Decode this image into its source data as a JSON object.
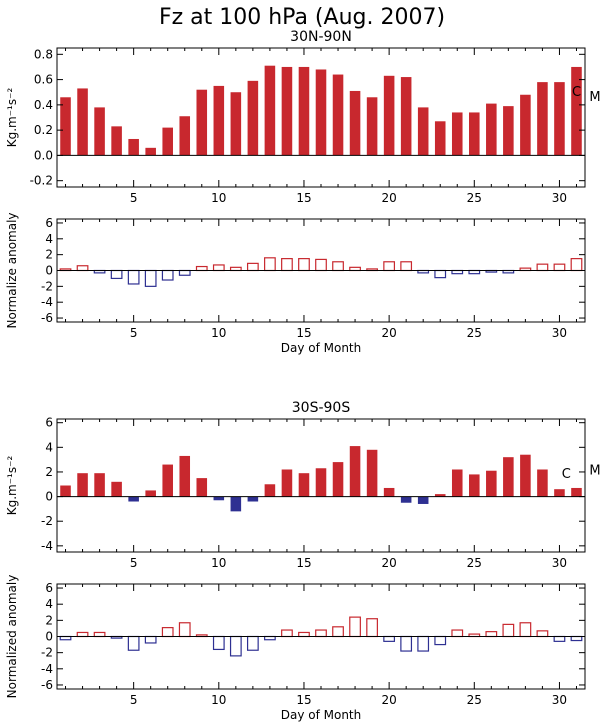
{
  "figure": {
    "title": "Fz at 100 hPa (Aug. 2007)"
  },
  "colors": {
    "positive": "#C8282E",
    "negative": "#2E3092",
    "axis": "#000000"
  },
  "chart_data": [
    {
      "id": "nh-fz",
      "type": "bar",
      "title": "30N-90N",
      "xlabel": "",
      "ylabel": "Kg.m⁻¹s⁻²",
      "x": [
        1,
        2,
        3,
        4,
        5,
        6,
        7,
        8,
        9,
        10,
        11,
        12,
        13,
        14,
        15,
        16,
        17,
        18,
        19,
        20,
        21,
        22,
        23,
        24,
        25,
        26,
        27,
        28,
        29,
        30,
        31
      ],
      "values": [
        0.46,
        0.53,
        0.38,
        0.23,
        0.13,
        0.06,
        0.22,
        0.31,
        0.52,
        0.55,
        0.5,
        0.59,
        0.71,
        0.7,
        0.7,
        0.68,
        0.64,
        0.51,
        0.46,
        0.63,
        0.62,
        0.38,
        0.27,
        0.34,
        0.34,
        0.41,
        0.39,
        0.48,
        0.58,
        0.58,
        0.7
      ],
      "ylim": [
        -0.25,
        0.85
      ],
      "yticks": [
        -0.2,
        0.0,
        0.2,
        0.4,
        0.6,
        0.8
      ],
      "xlim": [
        0.5,
        31.5
      ],
      "xticks": [
        5,
        10,
        15,
        20,
        25,
        30
      ],
      "style": "filled",
      "marker_labels": [
        {
          "text": "C",
          "x": 31,
          "y": 0.47
        },
        {
          "text": "M",
          "x": 32.2,
          "y": 0.43
        }
      ],
      "grid": false
    },
    {
      "id": "nh-anomaly",
      "type": "bar",
      "title": "",
      "xlabel": "Day of Month",
      "ylabel": "Normalize anomaly",
      "x": [
        1,
        2,
        3,
        4,
        5,
        6,
        7,
        8,
        9,
        10,
        11,
        12,
        13,
        14,
        15,
        16,
        17,
        18,
        19,
        20,
        21,
        22,
        23,
        24,
        25,
        26,
        27,
        28,
        29,
        30,
        31
      ],
      "values": [
        0.2,
        0.6,
        -0.3,
        -1.0,
        -1.7,
        -2.0,
        -1.2,
        -0.6,
        0.5,
        0.7,
        0.4,
        0.9,
        1.6,
        1.5,
        1.5,
        1.4,
        1.1,
        0.4,
        0.2,
        1.1,
        1.1,
        -0.3,
        -0.9,
        -0.4,
        -0.4,
        -0.2,
        -0.3,
        0.3,
        0.8,
        0.8,
        1.5
      ],
      "ylim": [
        -6.5,
        6.5
      ],
      "yticks": [
        -6,
        -4,
        -2,
        0,
        2,
        4,
        6
      ],
      "xlim": [
        0.5,
        31.5
      ],
      "xticks": [
        5,
        10,
        15,
        20,
        25,
        30
      ],
      "style": "outline",
      "grid": false
    },
    {
      "id": "sh-fz",
      "type": "bar",
      "title": "30S-90S",
      "xlabel": "",
      "ylabel": "Kg.m⁻¹s⁻²",
      "x": [
        1,
        2,
        3,
        4,
        5,
        6,
        7,
        8,
        9,
        10,
        11,
        12,
        13,
        14,
        15,
        16,
        17,
        18,
        19,
        20,
        21,
        22,
        23,
        24,
        25,
        26,
        27,
        28,
        29,
        30,
        31
      ],
      "values": [
        0.9,
        1.9,
        1.9,
        1.2,
        -0.4,
        0.5,
        2.6,
        3.3,
        1.5,
        -0.3,
        -1.2,
        -0.4,
        1.0,
        2.2,
        1.9,
        2.3,
        2.8,
        4.1,
        3.8,
        0.7,
        -0.5,
        -0.6,
        0.2,
        2.2,
        1.8,
        2.1,
        3.2,
        3.4,
        2.2,
        0.6,
        0.7
      ],
      "ylim": [
        -4.5,
        6.3
      ],
      "yticks": [
        -4,
        -2,
        0,
        2,
        4,
        6
      ],
      "xlim": [
        0.5,
        31.5
      ],
      "xticks": [
        5,
        10,
        15,
        20,
        25,
        30
      ],
      "style": "filled",
      "marker_labels": [
        {
          "text": "C",
          "x": 30.4,
          "y": 1.5
        },
        {
          "text": "M",
          "x": 32.2,
          "y": 1.8
        }
      ],
      "grid": false
    },
    {
      "id": "sh-anomaly",
      "type": "bar",
      "title": "",
      "xlabel": "Day of Month",
      "ylabel": "Normalized anomaly",
      "x": [
        1,
        2,
        3,
        4,
        5,
        6,
        7,
        8,
        9,
        10,
        11,
        12,
        13,
        14,
        15,
        16,
        17,
        18,
        19,
        20,
        21,
        22,
        23,
        24,
        25,
        26,
        27,
        28,
        29,
        30,
        31
      ],
      "values": [
        -0.4,
        0.5,
        0.5,
        -0.2,
        -1.7,
        -0.8,
        1.1,
        1.7,
        0.2,
        -1.6,
        -2.4,
        -1.7,
        -0.4,
        0.8,
        0.5,
        0.8,
        1.2,
        2.4,
        2.2,
        -0.6,
        -1.8,
        -1.8,
        -1.0,
        0.8,
        0.3,
        0.6,
        1.5,
        1.7,
        0.7,
        -0.6,
        -0.5
      ],
      "ylim": [
        -6.5,
        6.5
      ],
      "yticks": [
        -6,
        -4,
        -2,
        0,
        2,
        4,
        6
      ],
      "xlim": [
        0.5,
        31.5
      ],
      "xticks": [
        5,
        10,
        15,
        20,
        25,
        30
      ],
      "style": "outline",
      "grid": false
    }
  ]
}
